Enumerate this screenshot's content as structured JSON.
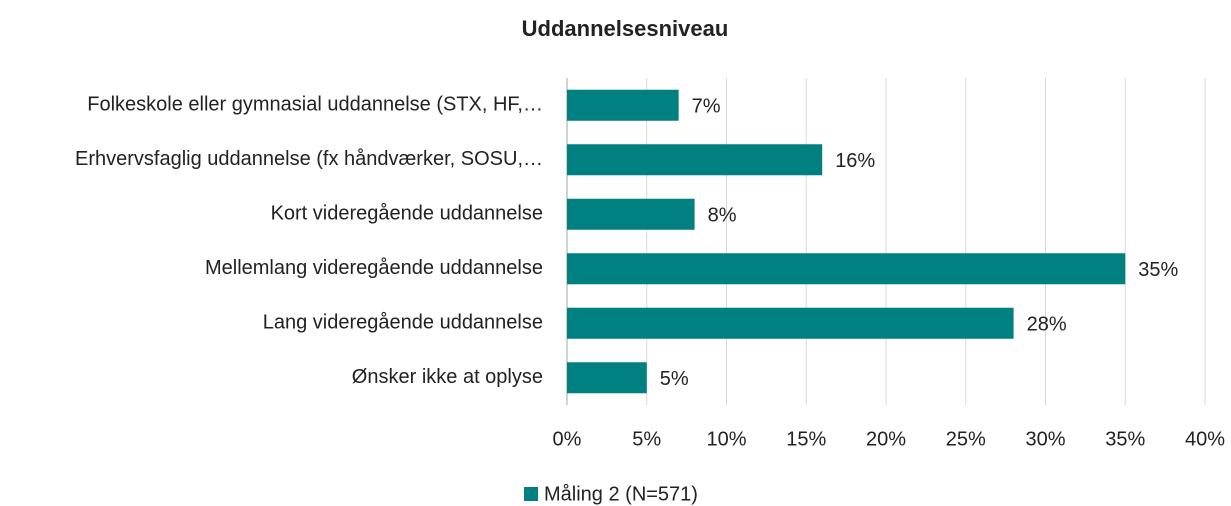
{
  "chart_data": {
    "type": "hbar",
    "title": "Uddannelsesniveau",
    "categories": [
      "Folkeskole eller gymnasial uddannelse (STX, HF,…",
      "Erhvervsfaglig uddannelse (fx håndværker, SOSU,…",
      "Kort videregående uddannelse",
      "Mellemlang videregående uddannelse",
      "Lang videregående uddannelse",
      "Ønsker ikke at oplyse"
    ],
    "series": [
      {
        "name": "Måling 2 (N=571)",
        "color": "#008080",
        "values": [
          7,
          16,
          8,
          35,
          28,
          5
        ],
        "value_labels": [
          "7%",
          "16%",
          "8%",
          "35%",
          "28%",
          "5%"
        ]
      }
    ],
    "xlim": [
      0,
      40
    ],
    "xticks": [
      {
        "value": 0,
        "label": "0%"
      },
      {
        "value": 5,
        "label": "5%"
      },
      {
        "value": 10,
        "label": "10%"
      },
      {
        "value": 15,
        "label": "15%"
      },
      {
        "value": 20,
        "label": "20%"
      },
      {
        "value": 25,
        "label": "25%"
      },
      {
        "value": 30,
        "label": "30%"
      },
      {
        "value": 35,
        "label": "35%"
      },
      {
        "value": 40,
        "label": "40%"
      }
    ],
    "grid": true,
    "legend": "bottom"
  }
}
